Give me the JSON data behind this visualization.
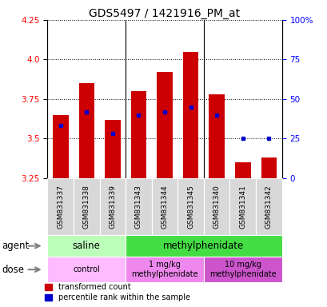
{
  "title": "GDS5497 / 1421916_PM_at",
  "samples": [
    "GSM831337",
    "GSM831338",
    "GSM831339",
    "GSM831343",
    "GSM831344",
    "GSM831345",
    "GSM831340",
    "GSM831341",
    "GSM831342"
  ],
  "bar_values": [
    3.65,
    3.85,
    3.62,
    3.8,
    3.92,
    4.05,
    3.78,
    3.35,
    3.38
  ],
  "percentile_values": [
    33,
    42,
    28,
    40,
    42,
    45,
    40,
    25,
    25
  ],
  "ylim": [
    3.25,
    4.25
  ],
  "yticks": [
    3.25,
    3.5,
    3.75,
    4.0,
    4.25
  ],
  "right_yticks": [
    0,
    25,
    50,
    75,
    100
  ],
  "bar_color": "#cc0000",
  "dot_color": "#0000cc",
  "bar_width": 0.6,
  "agent_labels": [
    "saline",
    "methylphenidate"
  ],
  "agent_colors": [
    "#bbffbb",
    "#44dd44"
  ],
  "dose_labels": [
    "control",
    "1 mg/kg\nmethylphenidate",
    "10 mg/kg\nmethylphenidate"
  ],
  "dose_colors": [
    "#ffbbff",
    "#ee88ee",
    "#cc55cc"
  ],
  "legend_items": [
    "transformed count",
    "percentile rank within the sample"
  ],
  "legend_colors": [
    "#cc0000",
    "#0000cc"
  ],
  "title_fontsize": 10,
  "tick_fontsize": 7.5,
  "label_fontsize": 8.5,
  "sample_fontsize": 6.5
}
